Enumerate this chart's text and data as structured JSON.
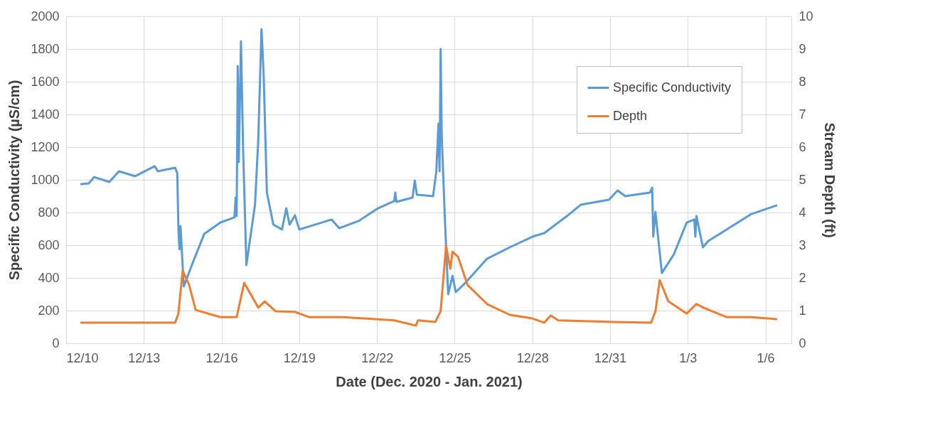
{
  "chart_data": {
    "type": "line",
    "xlabel": "Date (Dec. 2020 - Jan. 2021)",
    "ylabel": "Specific Conductivity (µS/cm)",
    "y2label": "Stream Depth (ft)",
    "xlim": [
      "2020-12-10",
      "2021-01-07"
    ],
    "xticks": [
      {
        "value": "2020-12-10",
        "label": "12/10"
      },
      {
        "value": "2020-12-13",
        "label": "12/13"
      },
      {
        "value": "2020-12-16",
        "label": "12/16"
      },
      {
        "value": "2020-12-19",
        "label": "12/19"
      },
      {
        "value": "2020-12-22",
        "label": "12/22"
      },
      {
        "value": "2020-12-25",
        "label": "12/25"
      },
      {
        "value": "2020-12-28",
        "label": "12/28"
      },
      {
        "value": "2020-12-31",
        "label": "12/31"
      },
      {
        "value": "2021-01-03",
        "label": "1/3"
      },
      {
        "value": "2021-01-06",
        "label": "1/6"
      }
    ],
    "ylim": [
      0,
      2000
    ],
    "yticks": [
      0,
      200,
      400,
      600,
      800,
      1000,
      1200,
      1400,
      1600,
      1800,
      2000
    ],
    "y2lim": [
      0,
      10
    ],
    "y2ticks": [
      0,
      1,
      2,
      3,
      4,
      5,
      6,
      7,
      8,
      9,
      10
    ],
    "grid": true,
    "legend": "top right",
    "line_style": "solid",
    "marker": "none",
    "series": [
      {
        "name": "Specific Conductivity",
        "color": "#5b9bd5",
        "x": [
          "2020-12-10T14:00",
          "2020-12-10T21:00",
          "2020-12-11T02:00",
          "2020-12-11T16:00",
          "2020-12-12T01:00",
          "2020-12-12T16:00",
          "2020-12-13T10:00",
          "2020-12-13T13:00",
          "2020-12-14T05:00",
          "2020-12-14T07:00",
          "2020-12-14T08:00",
          "2020-12-14T09:00",
          "2020-12-14T10:00",
          "2020-12-14T13:00",
          "2020-12-14T21:00",
          "2020-12-15T08:00",
          "2020-12-15T23:00",
          "2020-12-16T12:00",
          "2020-12-16T13:00",
          "2020-12-16T14:00",
          "2020-12-16T15:00",
          "2020-12-16T16:00",
          "2020-12-16T18:00",
          "2020-12-16T20:00",
          "2020-12-16T23:00",
          "2020-12-17T07:00",
          "2020-12-17T10:00",
          "2020-12-17T13:00",
          "2020-12-17T15:00",
          "2020-12-17T18:00",
          "2020-12-18T00:00",
          "2020-12-18T08:00",
          "2020-12-18T12:00",
          "2020-12-18T15:00",
          "2020-12-18T20:00",
          "2020-12-19T00:00",
          "2020-12-20T06:00",
          "2020-12-20T13:00",
          "2020-12-21T07:00",
          "2020-12-22T01:00",
          "2020-12-22T16:00",
          "2020-12-22T17:00",
          "2020-12-22T18:00",
          "2020-12-23T09:00",
          "2020-12-23T11:00",
          "2020-12-23T13:00",
          "2020-12-24T04:00",
          "2020-12-24T07:00",
          "2020-12-24T09:00",
          "2020-12-24T10:00",
          "2020-12-24T11:00",
          "2020-12-24T12:00",
          "2020-12-24T15:00",
          "2020-12-24T18:00",
          "2020-12-24T22:00",
          "2020-12-25T01:00",
          "2020-12-25T08:00",
          "2020-12-25T14:00",
          "2020-12-26T06:00",
          "2020-12-27T03:00",
          "2020-12-28T00:00",
          "2020-12-28T11:00",
          "2020-12-29T08:00",
          "2020-12-29T21:00",
          "2020-12-30T23:00",
          "2020-12-31T07:00",
          "2020-12-31T14:00",
          "2021-01-01T13:00",
          "2021-01-01T15:00",
          "2021-01-01T16:00",
          "2021-01-01T18:00",
          "2021-01-02T00:00",
          "2021-01-02T11:00",
          "2021-01-02T23:00",
          "2021-01-03T06:00",
          "2021-01-03T07:00",
          "2021-01-03T08:00",
          "2021-01-03T14:00",
          "2021-01-03T19:00",
          "2021-01-04T14:00",
          "2021-01-05T11:00",
          "2021-01-06T10:00"
        ],
        "values": [
          974,
          978,
          1017,
          987,
          1052,
          1022,
          1083,
          1052,
          1074,
          1039,
          704,
          574,
          717,
          348,
          487,
          670,
          739,
          770,
          891,
          778,
          1696,
          1109,
          1848,
          1183,
          478,
          848,
          1239,
          1922,
          1648,
          922,
          726,
          696,
          826,
          726,
          783,
          696,
          757,
          704,
          748,
          826,
          870,
          922,
          865,
          891,
          996,
          909,
          900,
          1052,
          1343,
          1052,
          1800,
          1270,
          748,
          300,
          413,
          313,
          357,
          400,
          517,
          587,
          652,
          674,
          778,
          848,
          878,
          935,
          900,
          922,
          952,
          652,
          804,
          430,
          543,
          739,
          757,
          652,
          778,
          587,
          626,
          704,
          791,
          843
        ]
      },
      {
        "name": "Depth",
        "color": "#ed7d31",
        "axis": "y2",
        "x": [
          "2020-12-10T14:00",
          "2020-12-14T05:00",
          "2020-12-14T08:00",
          "2020-12-14T12:00",
          "2020-12-14T18:00",
          "2020-12-15T00:00",
          "2020-12-15T23:00",
          "2020-12-16T14:00",
          "2020-12-16T21:00",
          "2020-12-17T10:00",
          "2020-12-17T16:00",
          "2020-12-18T02:00",
          "2020-12-18T20:00",
          "2020-12-19T09:00",
          "2020-12-20T17:00",
          "2020-12-22T16:00",
          "2020-12-23T12:00",
          "2020-12-23T14:00",
          "2020-12-24T06:00",
          "2020-12-24T11:00",
          "2020-12-24T16:00",
          "2020-12-24T20:00",
          "2020-12-24T22:00",
          "2020-12-25T03:00",
          "2020-12-25T12:00",
          "2020-12-26T06:00",
          "2020-12-27T03:00",
          "2020-12-28T00:00",
          "2020-12-28T11:00",
          "2020-12-28T17:00",
          "2020-12-29T00:00",
          "2020-12-31T03:00",
          "2021-01-01T14:00",
          "2021-01-01T18:00",
          "2021-01-01T22:00",
          "2021-01-02T06:00",
          "2021-01-02T23:00",
          "2021-01-03T08:00",
          "2021-01-03T16:00",
          "2021-01-04T12:00",
          "2021-01-05T11:00",
          "2021-01-06T10:00"
        ],
        "values": [
          0.63,
          0.63,
          0.91,
          2.22,
          1.78,
          1.02,
          0.8,
          0.8,
          1.85,
          1.09,
          1.28,
          0.98,
          0.96,
          0.8,
          0.8,
          0.7,
          0.54,
          0.7,
          0.65,
          0.98,
          2.98,
          2.28,
          2.8,
          2.65,
          1.78,
          1.2,
          0.87,
          0.76,
          0.63,
          0.85,
          0.7,
          0.65,
          0.63,
          0.98,
          1.93,
          1.28,
          0.91,
          1.2,
          1.07,
          0.8,
          0.8,
          0.74
        ]
      }
    ]
  }
}
